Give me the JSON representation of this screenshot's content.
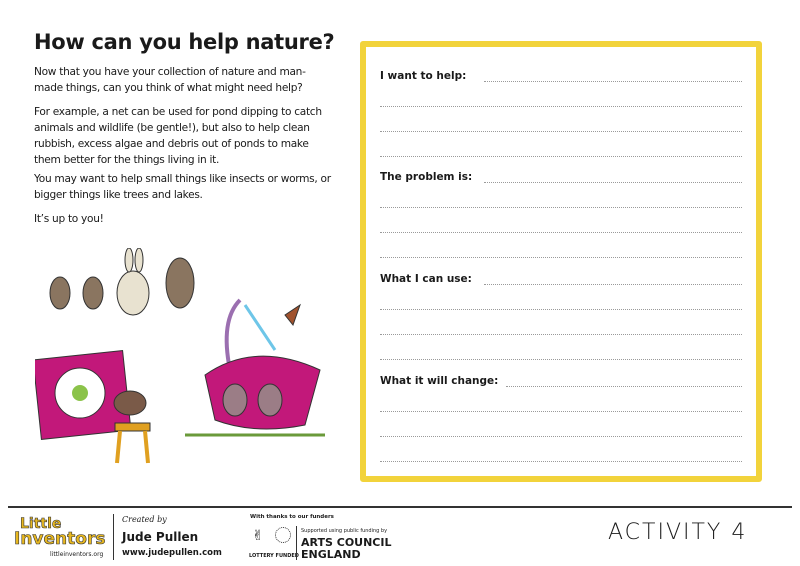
{
  "title": "How can you help nature?",
  "paragraphs": [
    "Now that you have your collection of nature and man-made things, can you think of what might need help?",
    "For example, a net can be used for pond dipping to catch animals and wildlife (be gentle!), but also to help clean rubbish, excess algae and debris out of ponds to make them better for the things living in it.",
    "You may want to help small things like insects or worms, or bigger things like trees and lakes.",
    "It’s up to you!"
  ],
  "form": {
    "accent": "#f2d33b",
    "fields": [
      {
        "label": "I want to help:"
      },
      {
        "label": "The problem is:"
      },
      {
        "label": "What I can use:"
      },
      {
        "label": "What it will change:"
      }
    ]
  },
  "footer": {
    "logo_line1": "Little",
    "logo_line2": "Inventors",
    "logo_url": "littleinventors.org",
    "created_by": "Created by",
    "creator": "Jude Pullen",
    "creator_url": "www.judepullen.com",
    "thanks": "With thanks to our funders",
    "lottery": "LOTTERY FUNDED",
    "acl_support": "Supported using public funding by",
    "acl_line1": "ARTS COUNCIL",
    "acl_line2": "ENGLAND",
    "activity": "ACTIVITY 4"
  }
}
